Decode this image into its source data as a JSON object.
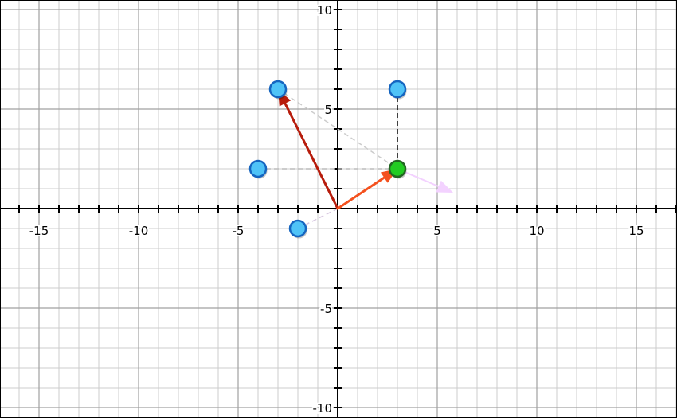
{
  "chart_data": {
    "type": "scatter",
    "title": "",
    "xlabel": "",
    "ylabel": "",
    "xlim": [
      -17,
      17
    ],
    "ylim": [
      -10.5,
      10.5
    ],
    "grid": true,
    "x_ticks": [
      {
        "value": -15,
        "label": "-15"
      },
      {
        "value": -10,
        "label": "-10"
      },
      {
        "value": -5,
        "label": "-5"
      },
      {
        "value": 5,
        "label": "5"
      },
      {
        "value": 10,
        "label": "10"
      },
      {
        "value": 15,
        "label": "15"
      }
    ],
    "y_ticks": [
      {
        "value": 10,
        "label": "10"
      },
      {
        "value": 5,
        "label": "5"
      },
      {
        "value": -5,
        "label": "-5"
      },
      {
        "value": -10,
        "label": "-10"
      }
    ],
    "points": [
      {
        "name": "blue-point",
        "x": -3,
        "y": 6,
        "color": "#4fc3f7",
        "stroke": "#1565c0"
      },
      {
        "name": "blue-point",
        "x": 3,
        "y": 6,
        "color": "#4fc3f7",
        "stroke": "#1565c0"
      },
      {
        "name": "blue-point",
        "x": -4,
        "y": 2,
        "color": "#4fc3f7",
        "stroke": "#1565c0"
      },
      {
        "name": "blue-point",
        "x": -2,
        "y": -1,
        "color": "#4fc3f7",
        "stroke": "#1565c0"
      },
      {
        "name": "green-point",
        "x": 3,
        "y": 2,
        "color": "#22cc22",
        "stroke": "#226622"
      }
    ],
    "vectors": [
      {
        "name": "dark-red-vector",
        "from": [
          0,
          0
        ],
        "to": [
          -3,
          6
        ],
        "color": "#b71c0c",
        "width": 3
      },
      {
        "name": "orange-red-vector",
        "from": [
          0,
          0
        ],
        "to": [
          3,
          2
        ],
        "color": "#f4511e",
        "width": 3
      },
      {
        "name": "pink-vector",
        "from": [
          3,
          2
        ],
        "to": [
          5.8,
          0.8
        ],
        "color": "#f3d2ff",
        "width": 2
      }
    ],
    "guide_lines": [
      {
        "name": "black-dashed-guide",
        "from": [
          3,
          6
        ],
        "to": [
          3,
          2
        ],
        "color": "#000000"
      },
      {
        "name": "gray-dashed-guide",
        "from": [
          -4,
          2
        ],
        "to": [
          3,
          2
        ],
        "color": "#bbbbbb"
      },
      {
        "name": "gray-dashed-guide",
        "from": [
          -3,
          6
        ],
        "to": [
          3,
          2
        ],
        "color": "#cccccc"
      },
      {
        "name": "gray-dashed-guide",
        "from": [
          -2,
          -1
        ],
        "to": [
          0,
          0
        ],
        "color": "#d8c8e0"
      }
    ],
    "colors": {
      "axis": "#000000",
      "major_grid": "#a0a0a0",
      "minor_grid": "#cccccc"
    }
  }
}
